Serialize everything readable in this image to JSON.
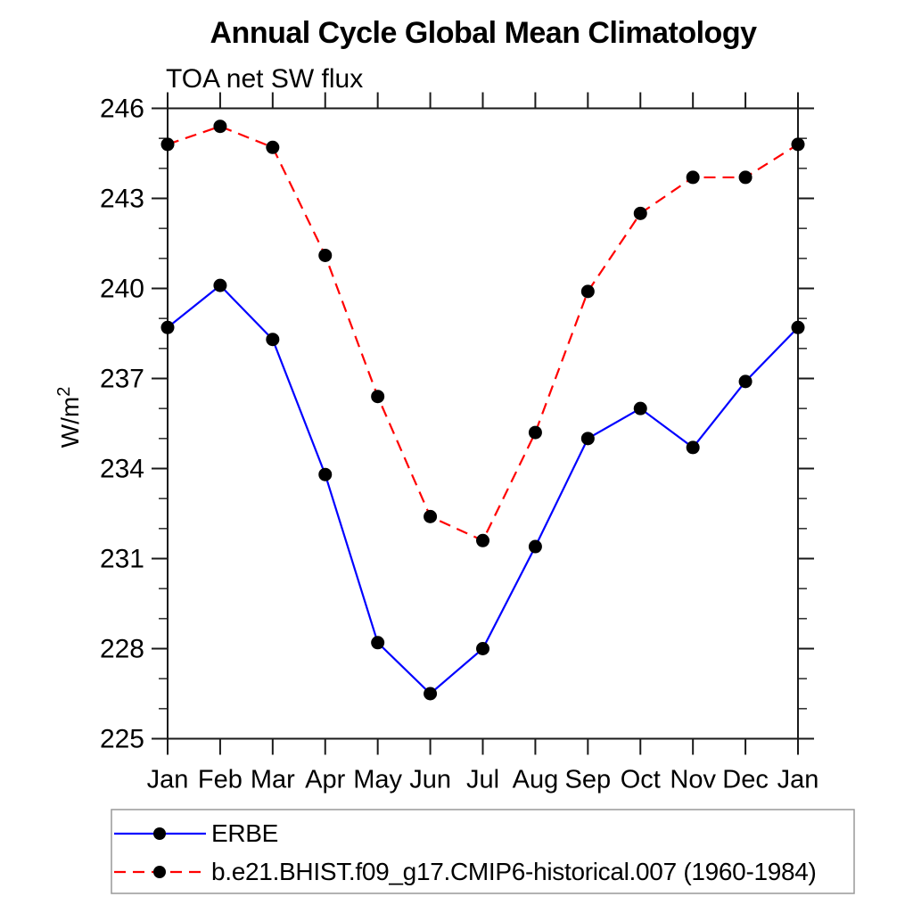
{
  "title": "Annual Cycle Global Mean Climatology",
  "subtitle": "TOA net SW flux",
  "y_axis": {
    "label_base": "W/m",
    "label_exponent": "2"
  },
  "colors": {
    "erbe_line": "#0000ff",
    "model_line": "#ff0000",
    "marker": "#000000",
    "axis": "#1a1a1a",
    "legend_border": "#999999",
    "text": "#000000"
  },
  "chart_data": {
    "type": "line",
    "title": "Annual Cycle Global Mean Climatology",
    "subtitle": "TOA net SW flux",
    "xlabel": "",
    "ylabel": "W/m2",
    "categories": [
      "Jan",
      "Feb",
      "Mar",
      "Apr",
      "May",
      "Jun",
      "Jul",
      "Aug",
      "Sep",
      "Oct",
      "Nov",
      "Dec",
      "Jan"
    ],
    "ylim": [
      225,
      246
    ],
    "yticks_major": [
      225,
      228,
      231,
      234,
      237,
      240,
      243,
      246
    ],
    "ytick_minor_step": 1,
    "grid": false,
    "legend_position": "bottom-left-box",
    "series": [
      {
        "name": "ERBE",
        "color": "#0000ff",
        "line_style": "solid",
        "marker": "filled-circle",
        "marker_color": "#000000",
        "values": [
          238.7,
          240.1,
          238.3,
          233.8,
          228.2,
          226.5,
          228.0,
          231.4,
          235.0,
          236.0,
          234.7,
          236.9,
          238.7
        ]
      },
      {
        "name": "b.e21.BHIST.f09_g17.CMIP6-historical.007 (1960-1984)",
        "color": "#ff0000",
        "line_style": "dashed",
        "marker": "filled-circle",
        "marker_color": "#000000",
        "values": [
          244.8,
          245.4,
          244.7,
          241.1,
          236.4,
          232.4,
          231.6,
          235.2,
          239.9,
          242.5,
          243.7,
          243.7,
          244.8
        ]
      }
    ]
  }
}
